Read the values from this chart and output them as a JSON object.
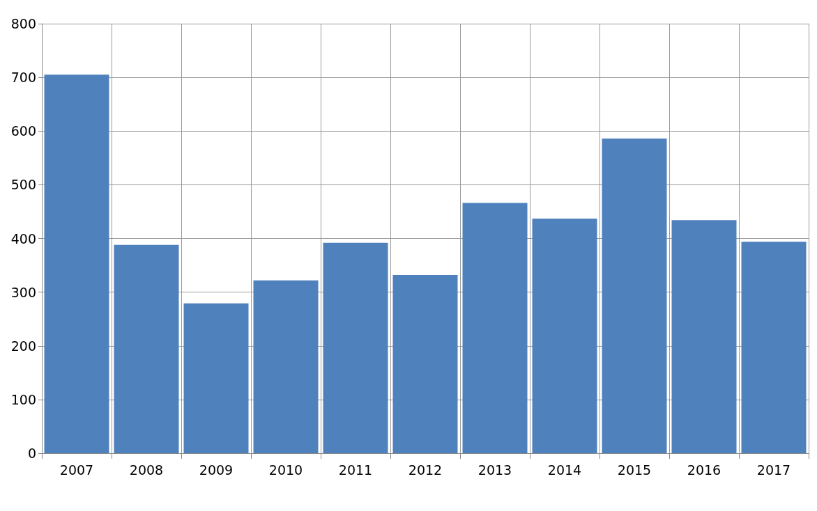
{
  "chart_data": {
    "type": "bar",
    "categories": [
      "2007",
      "2008",
      "2009",
      "2010",
      "2011",
      "2012",
      "2013",
      "2014",
      "2015",
      "2016",
      "2017"
    ],
    "values": [
      705,
      388,
      279,
      322,
      392,
      332,
      466,
      437,
      586,
      434,
      394
    ],
    "color": "#4f81bd",
    "ylim": [
      0,
      800
    ],
    "yticks": [
      0,
      100,
      200,
      300,
      400,
      500,
      600,
      700,
      800
    ],
    "grid": true
  }
}
